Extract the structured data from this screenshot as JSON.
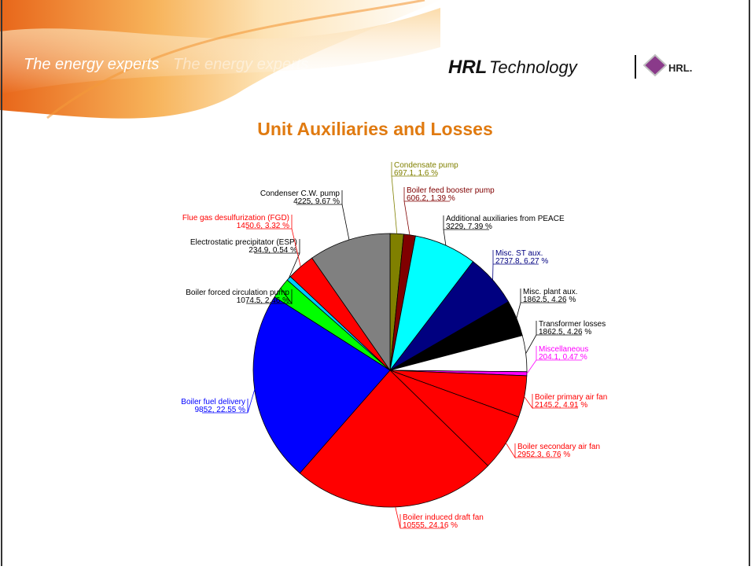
{
  "header": {
    "tagline": "The energy experts",
    "tagline_echo": "The energy experts",
    "brand": "HRL",
    "brand_suffix": "Technology",
    "logo": "HRL."
  },
  "chart_data": {
    "type": "pie",
    "title": "Unit Auxiliaries and Losses",
    "categories": [
      "Condensate pump",
      "Boiler feed booster pump",
      "Additional auxiliaries from PEACE",
      "Misc. ST aux.",
      "Misc. plant aux.",
      "Transformer losses",
      "Miscellaneous",
      "Boiler primary air fan",
      "Boiler secondary air fan",
      "Boiler induced draft fan",
      "Boiler fuel delivery",
      "Boiler forced circulation pump",
      "Electrostatic precipitator (ESP)",
      "Flue gas desulfurization (FGD)",
      "Condenser C.W. pump"
    ],
    "values": [
      697.1,
      606.2,
      3229,
      2737.8,
      1862.5,
      1862.5,
      204.1,
      2145.2,
      2952.3,
      10555,
      9852,
      1074.5,
      234.9,
      1450.6,
      4225
    ],
    "value_labels": [
      "697.1, 1.6 %",
      "606.2, 1.39 %",
      "3229, 7.39 %",
      "2737.8, 6.27 %",
      "1862.5, 4.26 %",
      "1862.5, 4.26 %",
      "204.1, 0.47 %",
      "2145.2, 4.91 %",
      "2952.3, 6.76 %",
      "10555, 24.16 %",
      "9852, 22.55 %",
      "1074.5, 2.46 %",
      "234.9, 0.54 %",
      "1450.6, 3.32 %",
      "4225, 9.67 %"
    ],
    "colors": [
      "#808000",
      "#800000",
      "#00ffff",
      "#000080",
      "#000000",
      "#ffffff",
      "#ff00ff",
      "#ff0000",
      "#ff0000",
      "#ff0000",
      "#0000ff",
      "#00ff00",
      "#00ccff",
      "#ff0000",
      "#808080"
    ],
    "label_colors": [
      "#808000",
      "#800000",
      "#000000",
      "#000080",
      "#000000",
      "#000000",
      "#ff00ff",
      "#ff0000",
      "#ff0000",
      "#ff0000",
      "#0000ff",
      "#000000",
      "#000000",
      "#ff0000",
      "#000000"
    ]
  }
}
